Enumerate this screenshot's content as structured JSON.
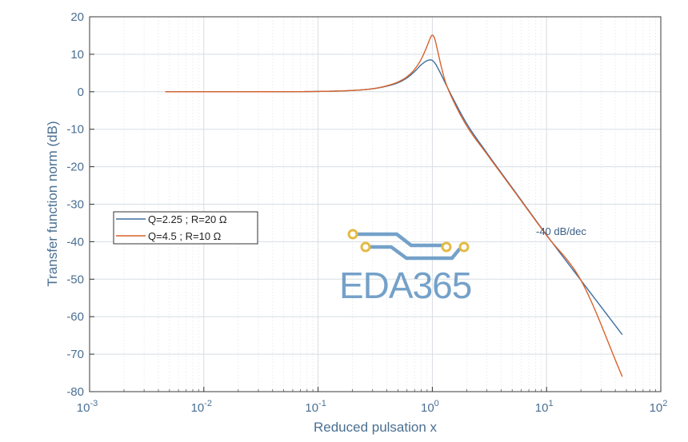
{
  "chart_data": {
    "type": "line",
    "xscale": "log",
    "xlim": [
      0.001,
      100
    ],
    "ylim": [
      -80,
      20
    ],
    "xlabel": "Reduced pulsation x",
    "ylabel": "Transfer function norm (dB)",
    "x_ticks": [
      {
        "value": 0.001,
        "base": "10",
        "exp": "-3"
      },
      {
        "value": 0.01,
        "base": "10",
        "exp": "-2"
      },
      {
        "value": 0.1,
        "base": "10",
        "exp": "-1"
      },
      {
        "value": 1,
        "base": "10",
        "exp": "0"
      },
      {
        "value": 10,
        "base": "10",
        "exp": "1"
      },
      {
        "value": 100,
        "base": "10",
        "exp": "2"
      }
    ],
    "y_ticks": [
      20,
      10,
      0,
      -10,
      -20,
      -30,
      -40,
      -50,
      -60,
      -70,
      -80
    ],
    "grid": true,
    "legend_position": "left-middle",
    "annotation": {
      "text": "-40 dB/dec",
      "x": 16,
      "y": -38
    },
    "series": [
      {
        "name": "Q=2.25 ; R=20 Ω",
        "color": "#3e6e9e",
        "x": [
          0.0046,
          0.01,
          0.03,
          0.1,
          0.2,
          0.3,
          0.4,
          0.5,
          0.6,
          0.7,
          0.8,
          0.9,
          0.97,
          1.05,
          1.15,
          1.3,
          1.5,
          2,
          3,
          5,
          10,
          20,
          46
        ],
        "y": [
          0.0,
          0.0,
          0.0,
          0.08,
          0.35,
          0.8,
          1.5,
          2.4,
          3.7,
          5.4,
          7.2,
          8.3,
          8.5,
          7.7,
          5.6,
          2.3,
          -1.5,
          -8.5,
          -16.3,
          -25.6,
          -38.2,
          -50.3,
          -64.8
        ]
      },
      {
        "name": "Q=4.5 ; R=10 Ω",
        "color": "#d9622b",
        "x": [
          0.0046,
          0.01,
          0.03,
          0.1,
          0.2,
          0.3,
          0.4,
          0.5,
          0.6,
          0.7,
          0.8,
          0.9,
          0.95,
          1.0,
          1.05,
          1.1,
          1.2,
          1.3,
          1.5,
          2,
          3,
          5,
          10,
          20,
          46
        ],
        "y": [
          0.0,
          0.0,
          0.01,
          0.08,
          0.35,
          0.8,
          1.6,
          2.6,
          4.0,
          6.0,
          8.7,
          12.2,
          14.0,
          15.1,
          14.1,
          11.6,
          6.6,
          2.7,
          -1.9,
          -9.1,
          -16.6,
          -25.8,
          -38.3,
          -50.3,
          -76.0
        ]
      }
    ]
  },
  "watermark": {
    "text": "EDA365"
  }
}
